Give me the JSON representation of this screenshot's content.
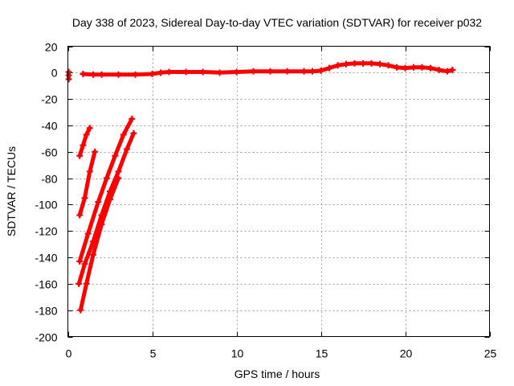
{
  "chart_data": {
    "type": "scatter",
    "title": "Day 338 of 2023, Sidereal Day-to-day VTEC variation (SDTVAR) for receiver p032",
    "xlabel": "GPS time / hours",
    "ylabel": "SDTVAR / TECUs",
    "xlim": [
      0,
      25
    ],
    "ylim": [
      -200,
      20
    ],
    "xticks": [
      0,
      5,
      10,
      15,
      20,
      25
    ],
    "xtick_labels": [
      "0",
      "5",
      "10",
      "15",
      "20",
      "25"
    ],
    "yticks": [
      20,
      0,
      -20,
      -40,
      -60,
      -80,
      -100,
      -120,
      -140,
      -160,
      -180,
      -200
    ],
    "ytick_labels": [
      "20",
      "0",
      "-20",
      "-40",
      "-60",
      "-80",
      "-100",
      "-120",
      "-140",
      "-160",
      "-180",
      "-200"
    ],
    "grid": true,
    "marker": "plus",
    "color": "#ff0000",
    "series": [
      {
        "name": "main-arc",
        "x": [
          0.9,
          1.5,
          2.0,
          3.0,
          4.0,
          5.0,
          5.5,
          6.0,
          7.0,
          8.0,
          9.0,
          10.0,
          11.0,
          12.0,
          13.0,
          14.0,
          14.5,
          15.0,
          15.5,
          16.0,
          16.5,
          17.0,
          17.5,
          18.0,
          18.5,
          19.0,
          19.5,
          20.0,
          20.5,
          21.0,
          21.5,
          22.0,
          22.5,
          22.8
        ],
        "y": [
          -1,
          -1.5,
          -1.5,
          -1.5,
          -1.5,
          -1,
          0,
          0.5,
          0.5,
          0.5,
          0,
          0.5,
          1,
          1,
          1,
          1,
          1,
          1.5,
          3.5,
          5.5,
          6.5,
          7,
          7,
          7,
          6.5,
          5.5,
          4,
          3.5,
          4,
          4,
          3.5,
          2,
          1,
          2
        ]
      },
      {
        "name": "early-points",
        "x": [
          0.05,
          0.05,
          0.05
        ],
        "y": [
          0.5,
          -2,
          -5
        ]
      },
      {
        "name": "arc-1",
        "x": [
          0.7,
          0.9,
          1.1,
          1.3
        ],
        "y": [
          -63,
          -55,
          -47,
          -42
        ]
      },
      {
        "name": "arc-2",
        "x": [
          0.7,
          1.0,
          1.3,
          1.6
        ],
        "y": [
          -108,
          -95,
          -75,
          -60
        ]
      },
      {
        "name": "arc-3",
        "x": [
          0.7,
          1.2,
          1.8,
          2.3,
          2.8,
          3.3,
          3.8
        ],
        "y": [
          -143,
          -122,
          -98,
          -80,
          -63,
          -47,
          -35
        ]
      },
      {
        "name": "arc-4",
        "x": [
          0.65,
          1.0,
          1.5,
          2.0,
          2.5,
          3.0,
          3.5,
          3.9
        ],
        "y": [
          -160,
          -145,
          -128,
          -108,
          -90,
          -75,
          -58,
          -46
        ]
      },
      {
        "name": "arc-5",
        "x": [
          0.75,
          1.1,
          1.5,
          2.0,
          2.5,
          3.0
        ],
        "y": [
          -180,
          -160,
          -138,
          -115,
          -96,
          -80
        ]
      }
    ]
  }
}
